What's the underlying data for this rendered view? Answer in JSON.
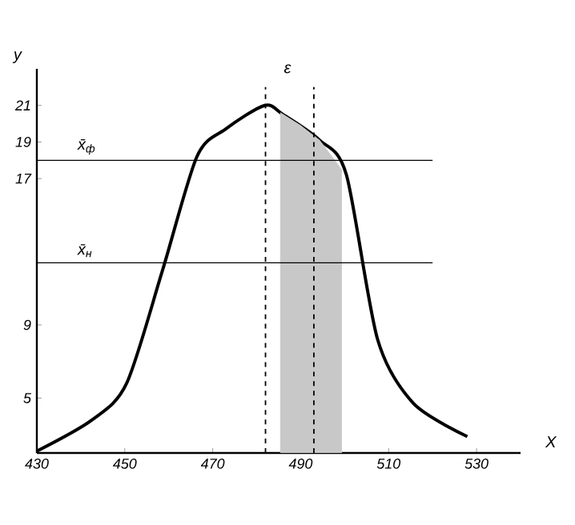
{
  "chart_data": {
    "type": "line",
    "xlabel": "X",
    "ylabel": "y",
    "x": [
      430,
      442.5,
      450.4,
      458.6,
      466.4,
      472.9,
      481.8,
      486,
      494.3,
      500.4,
      507.5,
      515.7,
      527.9
    ],
    "series": [
      {
        "color": "#000000",
        "values": [
          2.1,
          3.8,
          5.8,
          12,
          18.2,
          19.7,
          21,
          20.5,
          19.1,
          17.2,
          8.2,
          4.7,
          2.9
        ]
      },
      {
        "type": "area",
        "color": "#c8c8c8",
        "x": [
          485.4,
          490,
          494.3,
          499.3
        ],
        "values": [
          20.6,
          19.9,
          19.1,
          17.5
        ]
      }
    ],
    "xlim": [
      430,
      540
    ],
    "ylim": [
      2,
      23
    ],
    "xticks": [
      430,
      450,
      470,
      490,
      510,
      530
    ],
    "yticks": [
      5,
      9,
      17,
      19,
      21
    ],
    "ref_lines": [
      {
        "axis": "x",
        "value": 482,
        "line_style": "dashed",
        "color": "#000000"
      },
      {
        "axis": "x",
        "value": 493,
        "line_style": "dashed",
        "color": "#000000"
      },
      {
        "axis": "y",
        "value": 18,
        "label": "x̄$_{ф}$",
        "line_style": "solid",
        "color": "#000000"
      },
      {
        "axis": "y",
        "value": 12.4,
        "label": "x̄$_{н}$",
        "line_style": "solid",
        "color": "#000000"
      }
    ],
    "annotations": [
      "ε"
    ],
    "grid": false,
    "marker": "none",
    "line_style": "solid"
  }
}
